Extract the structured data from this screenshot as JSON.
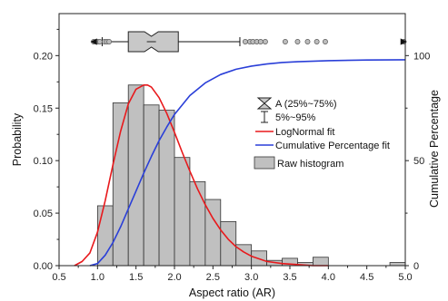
{
  "chart_data": {
    "type": "bar",
    "xlabel": "Aspect ratio (AR)",
    "ylabel": "Probability",
    "y2label": "Cumulative Percentage",
    "xlim": [
      0.5,
      5.0
    ],
    "ylim": [
      0,
      0.24
    ],
    "y2lim": [
      0,
      120
    ],
    "x_ticks": [
      "0.5",
      "1.0",
      "1.5",
      "2.0",
      "2.5",
      "3.0",
      "3.5",
      "4.0",
      "4.5",
      "5.0"
    ],
    "y_ticks": [
      "0.00",
      "0.05",
      "0.10",
      "0.15",
      "0.20"
    ],
    "y2_ticks": [
      "0",
      "50",
      "100"
    ],
    "histogram": {
      "name": "Raw histogram",
      "bin_width": 0.2,
      "bins": [
        {
          "start": 1.0,
          "value": 0.057
        },
        {
          "start": 1.2,
          "value": 0.155
        },
        {
          "start": 1.4,
          "value": 0.172
        },
        {
          "start": 1.6,
          "value": 0.153
        },
        {
          "start": 1.8,
          "value": 0.148
        },
        {
          "start": 2.0,
          "value": 0.103
        },
        {
          "start": 2.2,
          "value": 0.08
        },
        {
          "start": 2.4,
          "value": 0.063
        },
        {
          "start": 2.6,
          "value": 0.042
        },
        {
          "start": 2.8,
          "value": 0.02
        },
        {
          "start": 3.0,
          "value": 0.014
        },
        {
          "start": 3.2,
          "value": 0.005
        },
        {
          "start": 3.4,
          "value": 0.007
        },
        {
          "start": 3.6,
          "value": 0.003
        },
        {
          "start": 3.8,
          "value": 0.008
        },
        {
          "start": 4.8,
          "value": 0.003
        }
      ]
    },
    "lognormal_fit": {
      "name": "LogNormal fit",
      "color": "#e8191c",
      "x": [
        0.7,
        0.8,
        0.9,
        1.0,
        1.1,
        1.2,
        1.3,
        1.4,
        1.5,
        1.6,
        1.65,
        1.7,
        1.8,
        1.9,
        2.0,
        2.1,
        2.2,
        2.3,
        2.4,
        2.5,
        2.6,
        2.7,
        2.8,
        2.9,
        3.0,
        3.2,
        3.4,
        3.6,
        3.8,
        4.0
      ],
      "y": [
        0.0,
        0.004,
        0.012,
        0.032,
        0.062,
        0.096,
        0.128,
        0.154,
        0.168,
        0.172,
        0.172,
        0.17,
        0.16,
        0.145,
        0.127,
        0.108,
        0.09,
        0.073,
        0.058,
        0.045,
        0.034,
        0.025,
        0.018,
        0.013,
        0.009,
        0.004,
        0.002,
        0.001,
        0.0,
        0.0
      ]
    },
    "cumulative_fit": {
      "name": "Cumulative Percentage fit",
      "color": "#2a3fd8",
      "x": [
        0.9,
        1.0,
        1.1,
        1.2,
        1.3,
        1.4,
        1.5,
        1.6,
        1.7,
        1.8,
        1.9,
        2.0,
        2.2,
        2.4,
        2.6,
        2.8,
        3.0,
        3.2,
        3.4,
        3.6,
        4.0,
        4.5,
        5.0
      ],
      "y": [
        0.0,
        1.0,
        5.0,
        11.0,
        18.5,
        27.0,
        35.5,
        44.0,
        52.0,
        59.5,
        66.0,
        72.0,
        81.0,
        87.0,
        91.0,
        93.5,
        95.0,
        96.0,
        96.7,
        97.1,
        97.6,
        97.9,
        98.0
      ]
    },
    "boxplot": {
      "whisker_low": 1.06,
      "q1": 1.4,
      "median": 1.7,
      "q3": 2.05,
      "whisker_high": 2.85,
      "notch_low": 1.61,
      "notch_high": 1.79,
      "outliers": [
        0.95,
        1.0,
        1.03,
        1.09,
        1.12,
        1.15,
        2.92,
        2.98,
        3.02,
        3.07,
        3.12,
        3.18,
        3.44,
        3.6,
        3.73,
        3.85,
        3.96,
        4.98
      ],
      "min_marker": 0.95,
      "max_marker": 4.98
    },
    "legend": {
      "placement": "center-right",
      "entries": [
        {
          "key": "box",
          "label": "A (25%~75%)"
        },
        {
          "key": "whisker",
          "label": "5%~95%"
        },
        {
          "key": "lognormal",
          "label": "LogNormal fit"
        },
        {
          "key": "cumulative",
          "label": "Cumulative Percentage fit"
        },
        {
          "key": "histogram",
          "label": "Raw histogram"
        }
      ]
    },
    "colors": {
      "bar_fill": "#c0c0c0",
      "bar_stroke": "#333333",
      "box_fill": "#c8c8c8",
      "outlier_fill": "#bdbdbd"
    }
  }
}
